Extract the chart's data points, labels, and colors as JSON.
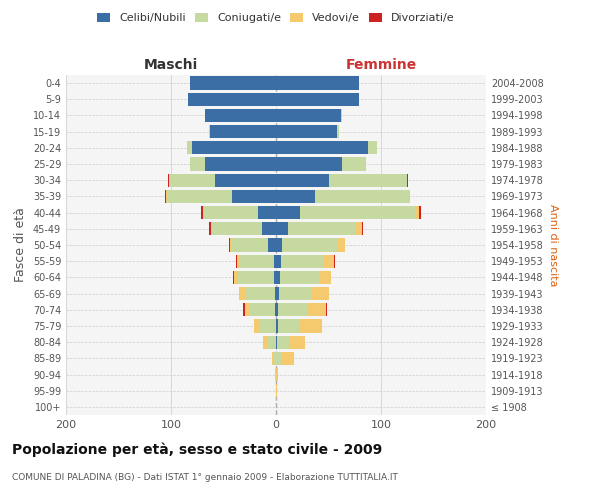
{
  "age_groups": [
    "100+",
    "95-99",
    "90-94",
    "85-89",
    "80-84",
    "75-79",
    "70-74",
    "65-69",
    "60-64",
    "55-59",
    "50-54",
    "45-49",
    "40-44",
    "35-39",
    "30-34",
    "25-29",
    "20-24",
    "15-19",
    "10-14",
    "5-9",
    "0-4"
  ],
  "birth_years": [
    "≤ 1908",
    "1909-1913",
    "1914-1918",
    "1919-1923",
    "1924-1928",
    "1929-1933",
    "1934-1938",
    "1939-1943",
    "1944-1948",
    "1949-1953",
    "1954-1958",
    "1959-1963",
    "1964-1968",
    "1969-1973",
    "1974-1978",
    "1979-1983",
    "1984-1988",
    "1989-1993",
    "1994-1998",
    "1999-2003",
    "2004-2008"
  ],
  "males": {
    "celibi": [
      0,
      0,
      0,
      0,
      0,
      0,
      1,
      1,
      2,
      2,
      8,
      13,
      17,
      42,
      58,
      68,
      80,
      63,
      68,
      84,
      82
    ],
    "coniugati": [
      0,
      0,
      1,
      3,
      9,
      16,
      24,
      28,
      34,
      33,
      35,
      48,
      52,
      62,
      44,
      14,
      5,
      1,
      0,
      0,
      0
    ],
    "vedovi": [
      0,
      0,
      0,
      1,
      3,
      5,
      5,
      6,
      4,
      2,
      1,
      1,
      1,
      1,
      0,
      0,
      0,
      0,
      0,
      0,
      0
    ],
    "divorziati": [
      0,
      0,
      0,
      0,
      0,
      0,
      1,
      0,
      1,
      1,
      1,
      2,
      1,
      1,
      1,
      0,
      0,
      0,
      0,
      0,
      0
    ]
  },
  "females": {
    "nubili": [
      0,
      0,
      0,
      0,
      1,
      2,
      2,
      3,
      4,
      5,
      6,
      11,
      23,
      37,
      50,
      63,
      88,
      58,
      62,
      79,
      79
    ],
    "coniugate": [
      0,
      0,
      0,
      5,
      11,
      20,
      28,
      30,
      38,
      40,
      52,
      65,
      110,
      90,
      75,
      22,
      8,
      2,
      1,
      0,
      0
    ],
    "vedove": [
      0,
      1,
      2,
      12,
      16,
      22,
      18,
      17,
      10,
      10,
      8,
      6,
      3,
      1,
      0,
      1,
      0,
      0,
      0,
      0,
      0
    ],
    "divorziate": [
      0,
      0,
      0,
      0,
      0,
      0,
      1,
      0,
      0,
      1,
      0,
      1,
      2,
      0,
      1,
      0,
      0,
      0,
      0,
      0,
      0
    ]
  },
  "color_celibi": "#3b6ea5",
  "color_coniugati": "#c5d9a0",
  "color_vedovi": "#f5c96e",
  "color_divorziati": "#cc2222",
  "xlim": 200,
  "title": "Popolazione per età, sesso e stato civile - 2009",
  "subtitle": "COMUNE DI PALADINA (BG) - Dati ISTAT 1° gennaio 2009 - Elaborazione TUTTITALIA.IT",
  "ylabel_left": "Fasce di età",
  "ylabel_right": "Anni di nascita",
  "xlabel_maschi": "Maschi",
  "xlabel_femmine": "Femmine",
  "bg_color": "#f5f5f5"
}
